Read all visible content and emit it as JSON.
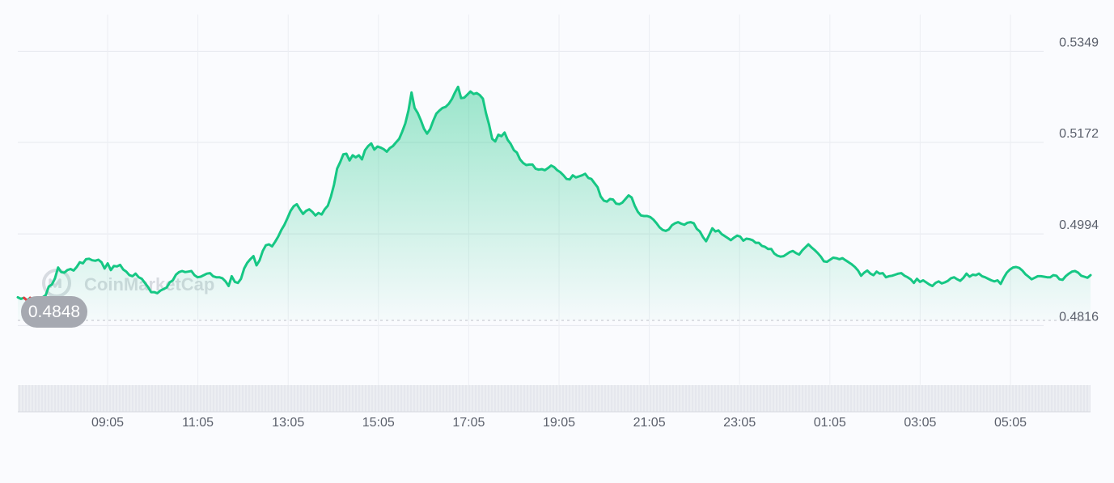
{
  "watermark": {
    "text": "CoinMarketCap",
    "logo_icon": "coinmarketcap-logo-icon"
  },
  "colors": {
    "line": "#16c784",
    "area_top": "#16c784",
    "down_marker": "#ea3943",
    "badge_bg": "#a6a9b1",
    "volume": "#e5e7ed",
    "baseline": "#c9ccd3"
  },
  "current_price_badge": "0.4848",
  "chart_data": {
    "type": "area",
    "title": "",
    "xlabel": "",
    "ylabel": "",
    "grid": true,
    "y_axis_position": "right",
    "ylim": [
      0.476,
      0.537
    ],
    "y_ticks": [
      "0.5349",
      "0.5172",
      "0.4994",
      "0.4816"
    ],
    "x_ticks": [
      "09:05",
      "11:05",
      "13:05",
      "15:05",
      "17:05",
      "19:05",
      "21:05",
      "23:05",
      "01:05",
      "03:05",
      "05:05"
    ],
    "baseline_value": 0.4848,
    "x_start": "07:20",
    "x_end": "07:05",
    "series": [
      {
        "values": [
          0.4852,
          0.4849,
          0.4851,
          0.4846,
          0.4851,
          0.4846,
          0.4847,
          0.4842,
          0.4852,
          0.4856,
          0.4873,
          0.4877,
          0.4889,
          0.491,
          0.4901,
          0.49,
          0.4905,
          0.4907,
          0.4904,
          0.4911,
          0.492,
          0.4918,
          0.4926,
          0.4927,
          0.4924,
          0.4923,
          0.4925,
          0.492,
          0.4908,
          0.4918,
          0.4905,
          0.4913,
          0.4912,
          0.4915,
          0.4906,
          0.4902,
          0.4895,
          0.4893,
          0.4898,
          0.4891,
          0.4888,
          0.488,
          0.4872,
          0.4862,
          0.4862,
          0.486,
          0.4865,
          0.4868,
          0.4871,
          0.4881,
          0.4885,
          0.4896,
          0.4901,
          0.4903,
          0.4901,
          0.4902,
          0.4903,
          0.4895,
          0.4891,
          0.4892,
          0.4895,
          0.4898,
          0.4899,
          0.4893,
          0.4891,
          0.4891,
          0.4889,
          0.4883,
          0.4874,
          0.4893,
          0.4882,
          0.488,
          0.4888,
          0.4908,
          0.4919,
          0.4926,
          0.4932,
          0.4914,
          0.4924,
          0.4942,
          0.4953,
          0.4955,
          0.4951,
          0.496,
          0.497,
          0.4983,
          0.4993,
          0.5006,
          0.502,
          0.5029,
          0.5033,
          0.5023,
          0.5014,
          0.502,
          0.5023,
          0.5018,
          0.5011,
          0.5016,
          0.5013,
          0.5023,
          0.503,
          0.5048,
          0.5071,
          0.5102,
          0.5115,
          0.513,
          0.5131,
          0.5118,
          0.5128,
          0.5124,
          0.5128,
          0.512,
          0.5138,
          0.5146,
          0.5151,
          0.5139,
          0.5145,
          0.5143,
          0.514,
          0.5135,
          0.5142,
          0.5146,
          0.5153,
          0.516,
          0.5174,
          0.519,
          0.5215,
          0.525,
          0.522,
          0.521,
          0.5196,
          0.518,
          0.517,
          0.5179,
          0.5195,
          0.5209,
          0.5215,
          0.522,
          0.5222,
          0.5228,
          0.5237,
          0.525,
          0.5261,
          0.5239,
          0.524,
          0.5246,
          0.5252,
          0.5247,
          0.5249,
          0.5245,
          0.5238,
          0.521,
          0.5188,
          0.516,
          0.5155,
          0.5168,
          0.5165,
          0.5172,
          0.5158,
          0.515,
          0.5138,
          0.5133,
          0.512,
          0.5113,
          0.5109,
          0.511,
          0.511,
          0.5102,
          0.51,
          0.5101,
          0.5099,
          0.5103,
          0.5108,
          0.5105,
          0.5099,
          0.5095,
          0.5089,
          0.5082,
          0.5081,
          0.5089,
          0.5085,
          0.5087,
          0.5089,
          0.5092,
          0.5084,
          0.5082,
          0.5074,
          0.5066,
          0.5048,
          0.504,
          0.5038,
          0.5043,
          0.5042,
          0.5034,
          0.5033,
          0.5036,
          0.5043,
          0.505,
          0.5046,
          0.503,
          0.5018,
          0.5011,
          0.501,
          0.501,
          0.5008,
          0.5003,
          0.4996,
          0.4988,
          0.4983,
          0.4981,
          0.4984,
          0.4992,
          0.4996,
          0.4998,
          0.4995,
          0.4993,
          0.4997,
          0.4998,
          0.4996,
          0.4985,
          0.498,
          0.4969,
          0.4961,
          0.4973,
          0.4986,
          0.498,
          0.4982,
          0.4975,
          0.4971,
          0.4967,
          0.4963,
          0.4968,
          0.4972,
          0.497,
          0.4962,
          0.4966,
          0.4965,
          0.4963,
          0.4958,
          0.4958,
          0.4952,
          0.495,
          0.4946,
          0.4946,
          0.4937,
          0.4933,
          0.4931,
          0.4932,
          0.4936,
          0.494,
          0.4942,
          0.4938,
          0.4935,
          0.4943,
          0.4949,
          0.4955,
          0.4949,
          0.4944,
          0.4938,
          0.4931,
          0.4922,
          0.4921,
          0.4925,
          0.4929,
          0.4928,
          0.4926,
          0.4928,
          0.4924,
          0.492,
          0.4916,
          0.4911,
          0.4904,
          0.4894,
          0.49,
          0.4904,
          0.4898,
          0.4895,
          0.4902,
          0.4898,
          0.4899,
          0.4891,
          0.4893,
          0.4894,
          0.4896,
          0.4898,
          0.4899,
          0.4894,
          0.4891,
          0.4887,
          0.488,
          0.4888,
          0.4882,
          0.4885,
          0.4881,
          0.4877,
          0.4874,
          0.488,
          0.4883,
          0.4879,
          0.4881,
          0.4884,
          0.4889,
          0.4891,
          0.4887,
          0.4884,
          0.489,
          0.4898,
          0.4892,
          0.4896,
          0.4895,
          0.4898,
          0.4893,
          0.4891,
          0.4888,
          0.4885,
          0.4883,
          0.4885,
          0.4878,
          0.489,
          0.49,
          0.4906,
          0.491,
          0.4911,
          0.4909,
          0.4904,
          0.4897,
          0.4892,
          0.4887,
          0.489,
          0.4893,
          0.4893,
          0.4892,
          0.4891,
          0.4891,
          0.4895,
          0.4894,
          0.4887,
          0.4886,
          0.4893,
          0.4898,
          0.4902,
          0.4903,
          0.49,
          0.4894,
          0.4892,
          0.489,
          0.4895
        ]
      }
    ]
  }
}
